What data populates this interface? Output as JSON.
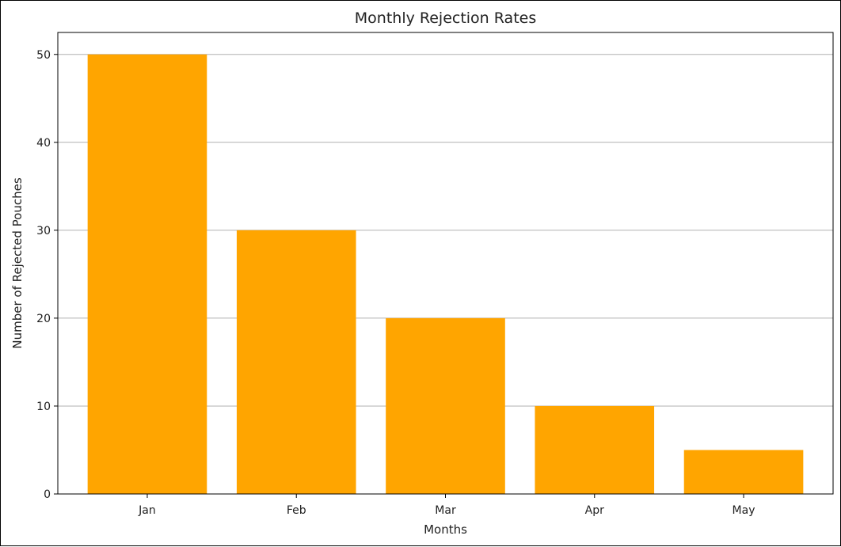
{
  "chart_data": {
    "type": "bar",
    "title": "Monthly Rejection Rates",
    "xlabel": "Months",
    "ylabel": "Number of Rejected Pouches",
    "categories": [
      "Jan",
      "Feb",
      "Mar",
      "Apr",
      "May"
    ],
    "values": [
      50,
      30,
      20,
      10,
      5
    ],
    "ylim": [
      0,
      52.5
    ],
    "yticks": [
      0,
      10,
      20,
      30,
      40,
      50
    ],
    "grid": "y",
    "legend": "none"
  },
  "colors": {
    "bar": "#FFA500",
    "grid": "#b0b0b0",
    "axis": "#000000",
    "text": "#222222"
  }
}
